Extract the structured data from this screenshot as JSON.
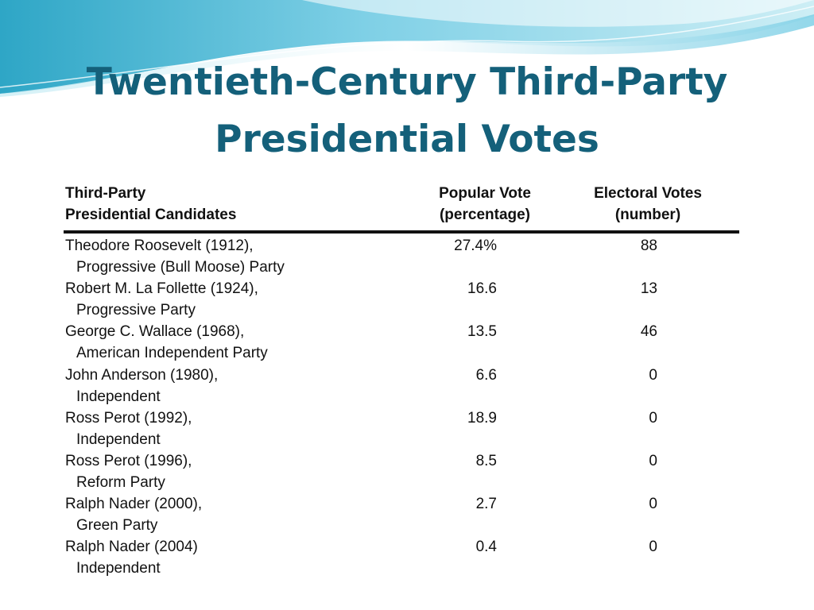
{
  "slide": {
    "title_line1": "Twentieth-Century Third-Party",
    "title_line2": "Presidential Votes"
  },
  "table": {
    "headers": {
      "candidate_line1": "Third-Party",
      "candidate_line2": "Presidential Candidates",
      "popular_line1": "Popular Vote",
      "popular_line2": "(percentage)",
      "electoral_line1": "Electoral Votes",
      "electoral_line2": "(number)"
    },
    "rows": [
      {
        "name": "Theodore Roosevelt (1912),",
        "party": "Progressive (Bull Moose) Party",
        "popular": "27.4%",
        "electoral": "88"
      },
      {
        "name": "Robert M. La Follette (1924),",
        "party": "Progressive Party",
        "popular": "16.6",
        "electoral": "13"
      },
      {
        "name": "George C. Wallace (1968),",
        "party": "American Independent Party",
        "popular": "13.5",
        "electoral": "46"
      },
      {
        "name": "John Anderson (1980),",
        "party": "Independent",
        "popular": "6.6",
        "electoral": "0"
      },
      {
        "name": "Ross Perot (1992),",
        "party": "Independent",
        "popular": "18.9",
        "electoral": "0"
      },
      {
        "name": "Ross Perot (1996),",
        "party": "Reform Party",
        "popular": "8.5",
        "electoral": "0"
      },
      {
        "name": "Ralph Nader (2000),",
        "party": "Green Party",
        "popular": "2.7",
        "electoral": "0"
      },
      {
        "name": "Ralph Nader (2004)",
        "party": "Independent",
        "popular": "0.4",
        "electoral": "0"
      }
    ]
  },
  "colors": {
    "title": "#14607a",
    "wave_light": "#cdeef5",
    "wave_mid": "#7fd0e6",
    "wave_dark": "#2ea6c6"
  }
}
